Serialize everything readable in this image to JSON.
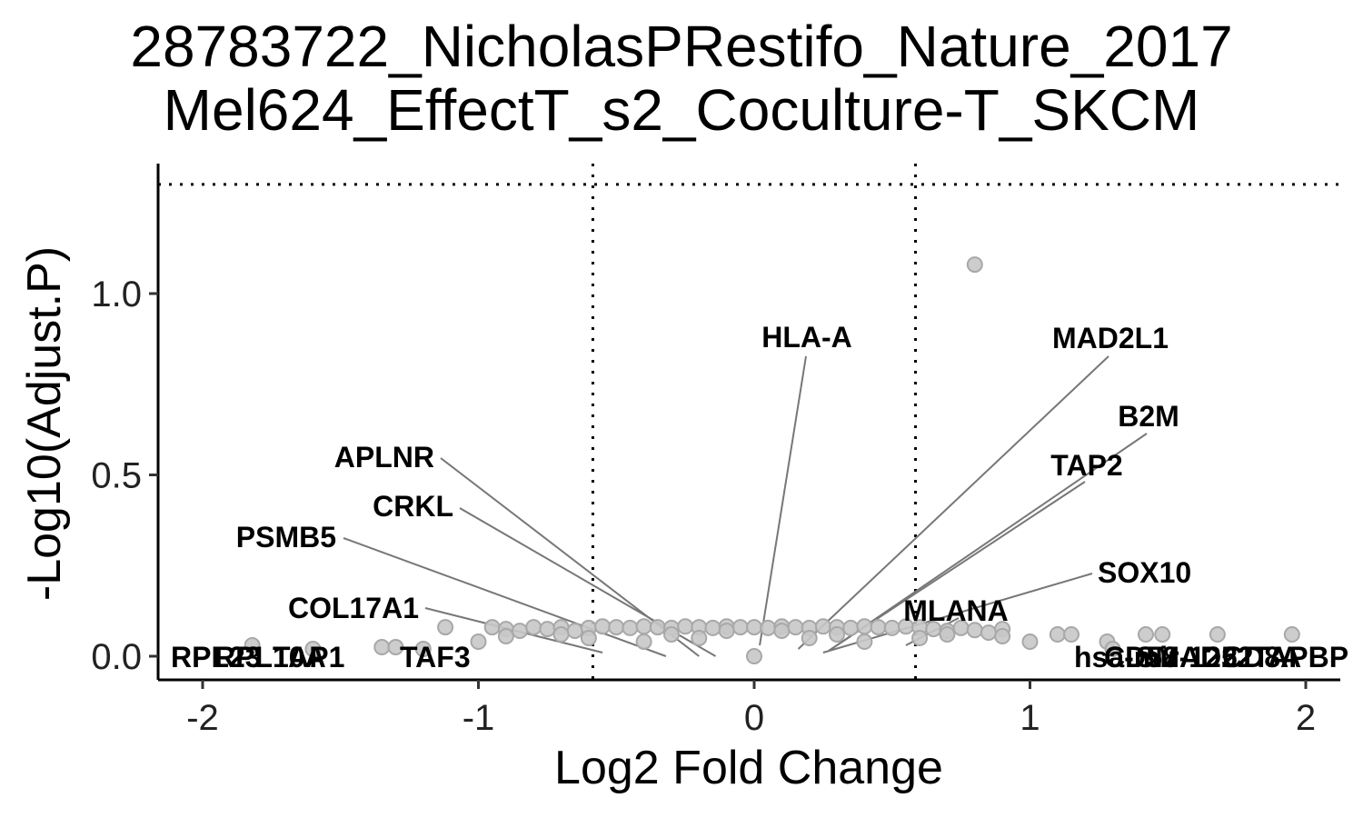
{
  "chart_data": {
    "type": "scatter",
    "title_lines": [
      "28783722_NicholasPRestifo_Nature_2017",
      "Mel624_EffectT_s2_Coculture-T_SKCM"
    ],
    "xlabel": "Log2 Fold Change",
    "ylabel": "-Log10(Adjust.P)",
    "xlim": [
      -2.18,
      2.13
    ],
    "ylim": [
      -0.06,
      1.36
    ],
    "x_ticks": [
      -2,
      -1,
      0,
      1,
      2
    ],
    "x_tick_labels": [
      "-2",
      "-1",
      "0",
      "1",
      "2"
    ],
    "y_ticks": [
      0.0,
      0.5,
      1.0
    ],
    "y_tick_labels": [
      "0.0",
      "0.5",
      "1.0"
    ],
    "thresholds": {
      "x": [
        -0.585,
        0.585
      ],
      "y": 1.301
    },
    "grid": false,
    "legend": "none",
    "point_color": "#c8c8c8",
    "point_edge_color": "#a8a8a8",
    "connector_color": "#777777",
    "points": [
      [
        0.8,
        1.08
      ],
      [
        -1.12,
        0.08
      ],
      [
        -0.95,
        0.08
      ],
      [
        -0.9,
        0.075
      ],
      [
        -0.85,
        0.07
      ],
      [
        -0.8,
        0.08
      ],
      [
        -0.75,
        0.075
      ],
      [
        -0.7,
        0.08
      ],
      [
        -0.65,
        0.07
      ],
      [
        -0.6,
        0.078
      ],
      [
        -0.55,
        0.082
      ],
      [
        -0.5,
        0.08
      ],
      [
        -0.45,
        0.078
      ],
      [
        -0.4,
        0.082
      ],
      [
        -0.35,
        0.08
      ],
      [
        -0.3,
        0.078
      ],
      [
        -0.25,
        0.082
      ],
      [
        -0.2,
        0.08
      ],
      [
        -0.15,
        0.078
      ],
      [
        -0.1,
        0.082
      ],
      [
        -0.05,
        0.08
      ],
      [
        0.0,
        0.08
      ],
      [
        0.05,
        0.078
      ],
      [
        0.1,
        0.082
      ],
      [
        0.15,
        0.08
      ],
      [
        0.2,
        0.078
      ],
      [
        0.25,
        0.082
      ],
      [
        0.3,
        0.08
      ],
      [
        0.35,
        0.078
      ],
      [
        0.4,
        0.082
      ],
      [
        0.45,
        0.08
      ],
      [
        0.5,
        0.078
      ],
      [
        0.55,
        0.082
      ],
      [
        0.6,
        0.08
      ],
      [
        0.65,
        0.075
      ],
      [
        0.7,
        0.07
      ],
      [
        0.75,
        0.078
      ],
      [
        0.8,
        0.072
      ],
      [
        0.85,
        0.065
      ],
      [
        0.9,
        0.075
      ],
      [
        1.1,
        0.06
      ],
      [
        1.15,
        0.06
      ],
      [
        1.28,
        0.04
      ],
      [
        1.42,
        0.06
      ],
      [
        1.48,
        0.06
      ],
      [
        1.68,
        0.06
      ],
      [
        1.95,
        0.06
      ],
      [
        1.3,
        0.02
      ],
      [
        -1.82,
        0.03
      ],
      [
        -1.6,
        0.02
      ],
      [
        -1.35,
        0.025
      ],
      [
        -1.3,
        0.025
      ],
      [
        -1.2,
        0.02
      ],
      [
        -1.0,
        0.04
      ],
      [
        -0.6,
        0.05
      ],
      [
        -0.4,
        0.04
      ],
      [
        0.4,
        0.04
      ],
      [
        0.6,
        0.05
      ],
      [
        1.0,
        0.04
      ],
      [
        0.0,
        0.0
      ],
      [
        -0.3,
        0.06
      ],
      [
        0.3,
        0.06
      ],
      [
        -0.2,
        0.05
      ],
      [
        0.2,
        0.05
      ],
      [
        -0.1,
        0.07
      ],
      [
        0.1,
        0.07
      ],
      [
        -0.7,
        0.06
      ],
      [
        0.7,
        0.06
      ],
      [
        -0.9,
        0.055
      ],
      [
        0.9,
        0.055
      ]
    ],
    "labels": [
      {
        "text": "HLA-A",
        "x": 0.02,
        "y": 0.03
      },
      {
        "text": "MAD2L1",
        "x": 0.16,
        "y": 0.02
      },
      {
        "text": "B2M",
        "x": 0.28,
        "y": 0.02
      },
      {
        "text": "TAP2",
        "x": 0.27,
        "y": 0.015
      },
      {
        "text": "SOX10",
        "x": 0.25,
        "y": 0.01
      },
      {
        "text": "MLANA",
        "x": 0.55,
        "y": 0.03
      },
      {
        "text": "APLNR",
        "x": -0.2,
        "y": 0.0
      },
      {
        "text": "CRKL",
        "x": -0.14,
        "y": 0.0
      },
      {
        "text": "PSMB5",
        "x": -0.32,
        "y": 0.0
      },
      {
        "text": "COL17A1",
        "x": -0.55,
        "y": 0.01
      },
      {
        "text": "RPL23",
        "x": -1.9,
        "y": 0.0
      },
      {
        "text": "RPL10A",
        "x": -1.55,
        "y": 0.0
      },
      {
        "text": "TAF3",
        "x": -1.05,
        "y": 0.0
      },
      {
        "text": "TAP1",
        "x": -1.4,
        "y": 0.0
      },
      {
        "text": "hsa-mir-1252",
        "x": 1.35,
        "y": 0.0
      },
      {
        "text": "CD58",
        "x": 1.45,
        "y": 0.0
      },
      {
        "text": "SMAD2",
        "x": 1.55,
        "y": 0.0
      },
      {
        "text": "CD8A",
        "x": 1.65,
        "y": 0.0
      },
      {
        "text": "TAPBP",
        "x": 1.8,
        "y": 0.0
      }
    ]
  }
}
